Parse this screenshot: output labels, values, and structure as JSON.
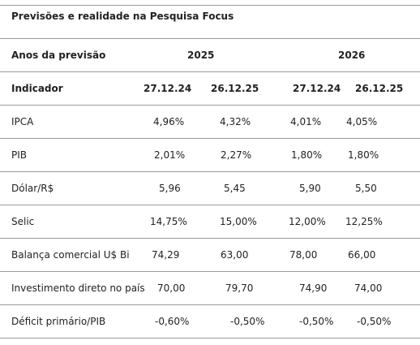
{
  "title": "Previsões e realidade na Pesquisa Focus",
  "years_header": {
    "label": "Anos da previsão",
    "year_a": "2025",
    "year_b": "2026"
  },
  "columns_header": {
    "label": "Indicador",
    "col1": "27.12.24",
    "col2": "26.12.25",
    "col3": "27.12.24",
    "col4": "26.12.25"
  },
  "rows": [
    {
      "label": "IPCA",
      "v1": "4,96%",
      "v2": "4,32%",
      "v3": "4,01%",
      "v4": "4,05%"
    },
    {
      "label": "PIB",
      "v1": "2,01%",
      "v2": "2,27%",
      "v3": "1,80%",
      "v4": "1,80%"
    },
    {
      "label": "Dólar/R$",
      "v1": "5,96",
      "v2": "5,45",
      "v3": "5,90",
      "v4": "5,50"
    },
    {
      "label": "Selic",
      "v1": "14,75%",
      "v2": "15,00%",
      "v3": "12,00%",
      "v4": "12,25%"
    },
    {
      "label": "Balança comercial U$ Bi",
      "v1": "74,29",
      "v2": "63,00",
      "v3": "78,00",
      "v4": "66,00"
    },
    {
      "label": "Investimento direto no país",
      "v1": "70,00",
      "v2": "79,70",
      "v3": "74,90",
      "v4": "74,00"
    },
    {
      "label": "Déficit primário/PIB",
      "v1": "-0,60%",
      "v2": "-0,50%",
      "v3": "-0,50%",
      "v4": "-0,50%"
    }
  ]
}
